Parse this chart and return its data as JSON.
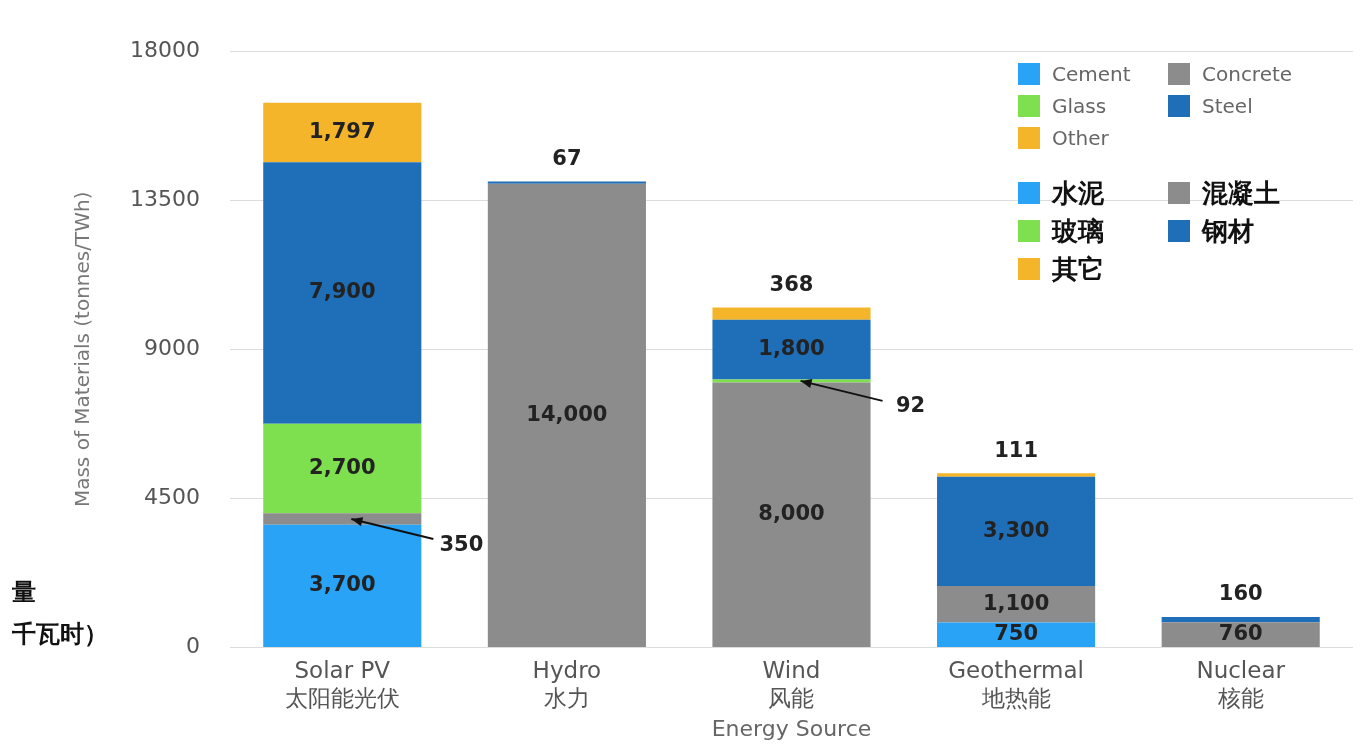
{
  "chart_data": {
    "type": "bar",
    "stacked": true,
    "ylabel": "Mass of Materials (tonnes/TWh)",
    "xlabel": "Energy Source",
    "categories": [
      "Solar PV\n太阳能光伏",
      "Hydro\n水力",
      "Wind\n风能",
      "Geothermal\n地热能",
      "Nuclear\n核能"
    ],
    "series": [
      {
        "name": "Cement",
        "color": "#29a3f5",
        "values": [
          3700,
          null,
          null,
          750,
          null
        ],
        "value_labels": [
          "3,700",
          null,
          null,
          "750",
          null
        ]
      },
      {
        "name": "Concrete",
        "color": "#8c8c8c",
        "values": [
          350,
          14000,
          8000,
          1100,
          760
        ],
        "value_labels": [
          "350",
          "14,000",
          "8,000",
          "1,100",
          "760"
        ]
      },
      {
        "name": "Glass",
        "color": "#7ee04f",
        "values": [
          2700,
          null,
          92,
          null,
          null
        ],
        "value_labels": [
          "2,700",
          null,
          "92",
          null,
          null
        ]
      },
      {
        "name": "Steel",
        "color": "#1f6fb8",
        "values": [
          7900,
          67,
          1800,
          3300,
          160
        ],
        "value_labels": [
          "7,900",
          "67",
          "1,800",
          "3,300",
          "160"
        ]
      },
      {
        "name": "Other",
        "color": "#f5b52a",
        "values": [
          1797,
          null,
          368,
          111,
          null
        ],
        "value_labels": [
          "1,797",
          null,
          "368",
          "111",
          null
        ]
      }
    ],
    "ylim": [
      0,
      18000
    ],
    "yticks": [
      0,
      4500,
      9000,
      13500,
      18000
    ],
    "grid": "y",
    "legend": "top right",
    "annotations": [
      "水泥",
      "混凝土",
      "玻璃",
      "钢材",
      "其它",
      "量",
      "千瓦时）"
    ]
  }
}
